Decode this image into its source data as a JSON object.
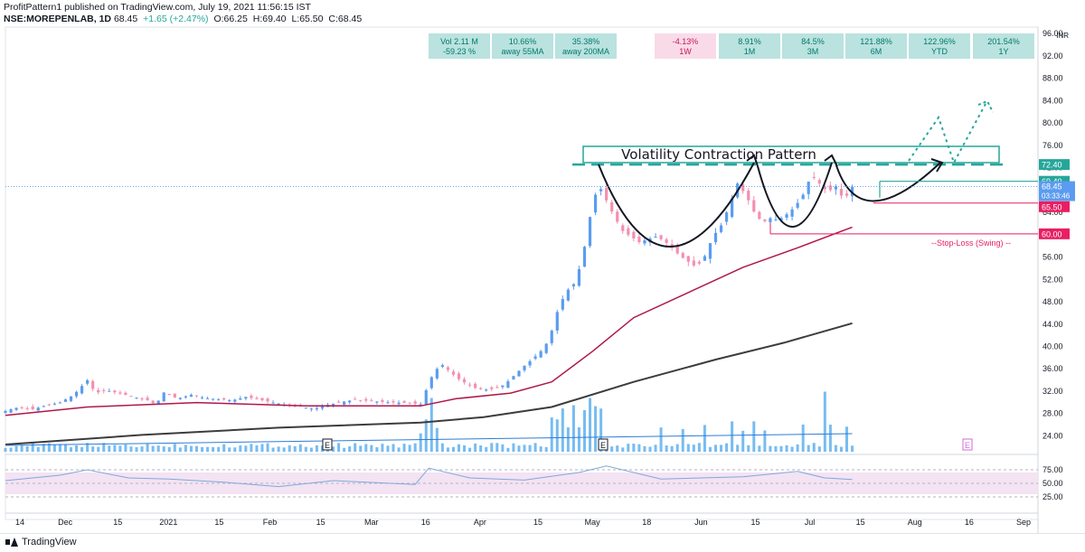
{
  "header": {
    "line1": "ProfitPattern1 published on TradingView.com, July 19, 2021 11:56:15 IST",
    "symbol": "NSE:MOREPENLAB, 1D",
    "last": "68.45",
    "change": "+1.65 (+2.47%)",
    "open": "O:66.25",
    "high": "H:69.40",
    "low": "L:65.50",
    "close": "C:68.45"
  },
  "footer": {
    "brand": "TradingView"
  },
  "colors": {
    "up": "#5b9cf0",
    "down": "#f48fb1",
    "ma_red": "#b0174a",
    "ma_black": "#3c3c3c",
    "teal": "#26a69a",
    "teal_fill": "#b2dfdb",
    "pink_fill": "#f8d7e4",
    "volume": "#5fb0ef",
    "rsi_line": "#7fa8d9",
    "rsi_band": "#f3e3f3"
  },
  "chart_data": {
    "type": "candlestick",
    "title": "NSE:MOREPENLAB, 1D",
    "currency": "INR",
    "y_ticks": [
      "96.00",
      "92.00",
      "88.00",
      "84.00",
      "80.00",
      "76.00",
      "72.00",
      "68.00",
      "64.00",
      "60.00",
      "56.00",
      "52.00",
      "48.00",
      "44.00",
      "40.00",
      "36.00",
      "32.00",
      "28.00",
      "24.00"
    ],
    "ylim": [
      21,
      97
    ],
    "x_ticks": [
      "14",
      "Dec",
      "15",
      "2021",
      "15",
      "Feb",
      "15",
      "Mar",
      "16",
      "Apr",
      "15",
      "May",
      "18",
      "Jun",
      "15",
      "Jul",
      "15",
      "Aug",
      "16",
      "Sep"
    ],
    "price_labels": {
      "resistance": "72.40",
      "target_line": "69.40",
      "last": "68.45",
      "countdown": "03:33:46",
      "low": "65.50",
      "stop": "60.00"
    },
    "annotations": {
      "pattern_label": "Volatility Contraction Pattern",
      "stop_label": "--Stop-Loss (Swing) --",
      "earnings_marker": "E"
    },
    "stats": [
      {
        "value": "Vol 2.11 M",
        "label": "-59.23 %",
        "style": "teal"
      },
      {
        "value": "10.66%",
        "label": "away 55MA",
        "style": "teal"
      },
      {
        "value": "35.38%",
        "label": "away 200MA",
        "style": "teal"
      },
      {
        "value": "-4.13%",
        "label": "1W",
        "style": "pink"
      },
      {
        "value": "8.91%",
        "label": "1M",
        "style": "teal"
      },
      {
        "value": "84.5%",
        "label": "3M",
        "style": "teal"
      },
      {
        "value": "121.88%",
        "label": "6M",
        "style": "teal"
      },
      {
        "value": "122.96%",
        "label": "YTD",
        "style": "teal"
      },
      {
        "value": "201.54%",
        "label": "1Y",
        "style": "teal"
      }
    ],
    "rsi_ticks": [
      "75.00",
      "50.00",
      "25.00"
    ],
    "series": [
      {
        "name": "price",
        "points": [
          [
            0,
            28.3
          ],
          [
            5,
            29
          ],
          [
            10,
            28.6
          ],
          [
            15,
            29.3
          ],
          [
            20,
            29.8
          ],
          [
            25,
            31.2
          ],
          [
            30,
            33.8
          ],
          [
            33,
            31.5
          ],
          [
            37,
            32
          ],
          [
            42,
            31.4
          ],
          [
            47,
            30.8
          ],
          [
            52,
            30.2
          ],
          [
            55,
            29.4
          ],
          [
            58,
            31.6
          ],
          [
            63,
            30.5
          ],
          [
            68,
            31.2
          ],
          [
            73,
            30.6
          ],
          [
            78,
            30.4
          ],
          [
            83,
            30.2
          ],
          [
            88,
            30.8
          ],
          [
            93,
            30.3
          ],
          [
            98,
            29.8
          ],
          [
            103,
            29.4
          ],
          [
            108,
            29.1
          ],
          [
            113,
            28.6
          ],
          [
            118,
            29.4
          ],
          [
            123,
            29.9
          ],
          [
            128,
            30.3
          ],
          [
            133,
            30.1
          ],
          [
            138,
            29.9
          ],
          [
            143,
            29.8
          ],
          [
            148,
            29.7
          ],
          [
            152,
            29.5
          ],
          [
            154,
            32
          ],
          [
            155,
            33.2
          ],
          [
            157,
            35.5
          ],
          [
            160,
            36.5
          ],
          [
            163,
            35.2
          ],
          [
            166,
            34
          ],
          [
            169,
            33.1
          ],
          [
            172,
            32.4
          ],
          [
            175,
            32.1
          ],
          [
            178,
            32.2
          ],
          [
            181,
            32.5
          ],
          [
            184,
            33.6
          ],
          [
            187,
            35
          ],
          [
            190,
            36.4
          ],
          [
            193,
            37.6
          ],
          [
            196,
            39
          ],
          [
            199,
            41
          ],
          [
            202,
            46
          ],
          [
            205,
            49.5
          ],
          [
            208,
            51
          ],
          [
            211,
            55
          ],
          [
            214,
            63
          ],
          [
            217,
            69
          ],
          [
            220,
            66
          ],
          [
            223,
            63
          ],
          [
            226,
            60.5
          ],
          [
            229,
            59.5
          ],
          [
            232,
            58.5
          ],
          [
            235,
            59
          ],
          [
            238,
            59.5
          ],
          [
            241,
            58.8
          ],
          [
            244,
            57.5
          ],
          [
            247,
            56
          ],
          [
            250,
            55
          ],
          [
            253,
            54
          ],
          [
            256,
            56
          ],
          [
            259,
            59.5
          ],
          [
            262,
            61.5
          ],
          [
            265,
            65
          ],
          [
            268,
            69
          ],
          [
            271,
            67
          ],
          [
            274,
            64
          ],
          [
            277,
            62
          ],
          [
            280,
            62.8
          ],
          [
            283,
            62.5
          ],
          [
            286,
            63.5
          ],
          [
            289,
            64.8
          ],
          [
            292,
            67
          ],
          [
            295,
            70.5
          ],
          [
            298,
            69
          ],
          [
            301,
            67.5
          ],
          [
            304,
            68.5
          ],
          [
            307,
            66
          ],
          [
            310,
            68.45
          ]
        ]
      },
      {
        "name": "ma_red",
        "points": [
          [
            0,
            27.5
          ],
          [
            30,
            29
          ],
          [
            70,
            29.8
          ],
          [
            110,
            29.2
          ],
          [
            152,
            29.2
          ],
          [
            165,
            30.5
          ],
          [
            185,
            31.5
          ],
          [
            200,
            33.5
          ],
          [
            215,
            39
          ],
          [
            230,
            45
          ],
          [
            250,
            49.5
          ],
          [
            270,
            54
          ],
          [
            290,
            57.5
          ],
          [
            310,
            61.2
          ]
        ]
      },
      {
        "name": "ma_black",
        "points": [
          [
            0,
            22.3
          ],
          [
            50,
            24
          ],
          [
            100,
            25.3
          ],
          [
            152,
            26.2
          ],
          [
            175,
            27.2
          ],
          [
            200,
            29
          ],
          [
            230,
            33.5
          ],
          [
            260,
            37.5
          ],
          [
            285,
            40.5
          ],
          [
            310,
            44
          ]
        ]
      },
      {
        "name": "rsi",
        "points": [
          [
            0,
            55
          ],
          [
            10,
            60
          ],
          [
            20,
            65
          ],
          [
            30,
            75
          ],
          [
            45,
            60
          ],
          [
            60,
            58
          ],
          [
            80,
            52
          ],
          [
            100,
            44
          ],
          [
            120,
            55
          ],
          [
            150,
            48
          ],
          [
            155,
            78
          ],
          [
            170,
            60
          ],
          [
            190,
            56
          ],
          [
            210,
            70
          ],
          [
            220,
            82
          ],
          [
            240,
            58
          ],
          [
            270,
            62
          ],
          [
            290,
            72
          ],
          [
            300,
            60
          ],
          [
            310,
            57
          ]
        ]
      }
    ],
    "volume_note": "volume bars shown in lower panel; RSI panel at bottom"
  }
}
